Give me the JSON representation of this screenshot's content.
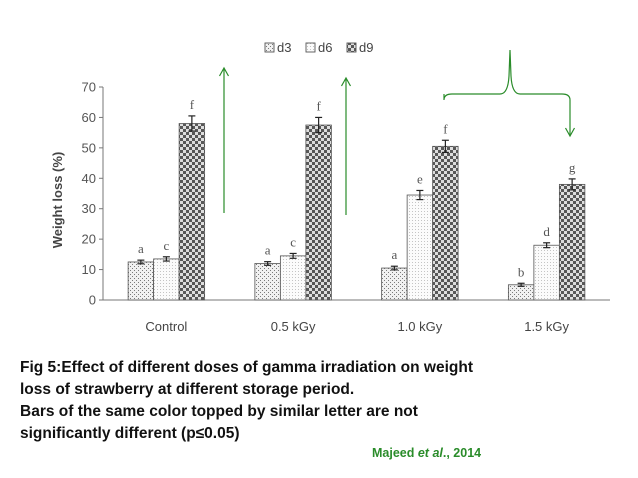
{
  "chart_data": {
    "type": "bar",
    "title": "",
    "xlabel": "",
    "ylabel": "Weight loss (%)",
    "ylim": [
      0,
      70
    ],
    "yticks": [
      0,
      10,
      20,
      30,
      40,
      50,
      60,
      70
    ],
    "categories": [
      "Control",
      "0.5 kGy",
      "1.0 kGy",
      "1.5 kGy"
    ],
    "series": [
      {
        "name": "d3",
        "values": [
          12.5,
          12,
          10.5,
          5
        ],
        "errors": [
          0.6,
          0.6,
          0.6,
          0.5
        ],
        "letters": [
          "a",
          "a",
          "a",
          "b"
        ]
      },
      {
        "name": "d6",
        "values": [
          13.5,
          14.5,
          34.5,
          18
        ],
        "errors": [
          0.7,
          0.8,
          1.5,
          0.8
        ],
        "letters": [
          "c",
          "c",
          "e",
          "d"
        ]
      },
      {
        "name": "d9",
        "values": [
          58,
          57.5,
          50.5,
          38
        ],
        "errors": [
          2.5,
          2.5,
          2.0,
          1.8
        ],
        "letters": [
          "f",
          "f",
          "f",
          "g"
        ]
      }
    ],
    "legend_position": "top",
    "annotations": "green arrows over Control and 0.5 kGy d9 bars; green brace spanning 1.0 kGy to 1.5 kGy d9 bars"
  },
  "caption": {
    "line1": "Fig 5:Effect of different doses of gamma irradiation on weight",
    "line2": "loss of strawberry at different storage period.",
    "line3": "Bars of the same color topped by similar letter are not",
    "line4": "significantly different (p≤0.05)"
  },
  "citation": {
    "author": "Majeed ",
    "etal": "et al",
    "year": "., 2014"
  },
  "colors": {
    "annotation": "#2a8c2a",
    "axis": "#777777",
    "bar_outline": "#555555"
  }
}
